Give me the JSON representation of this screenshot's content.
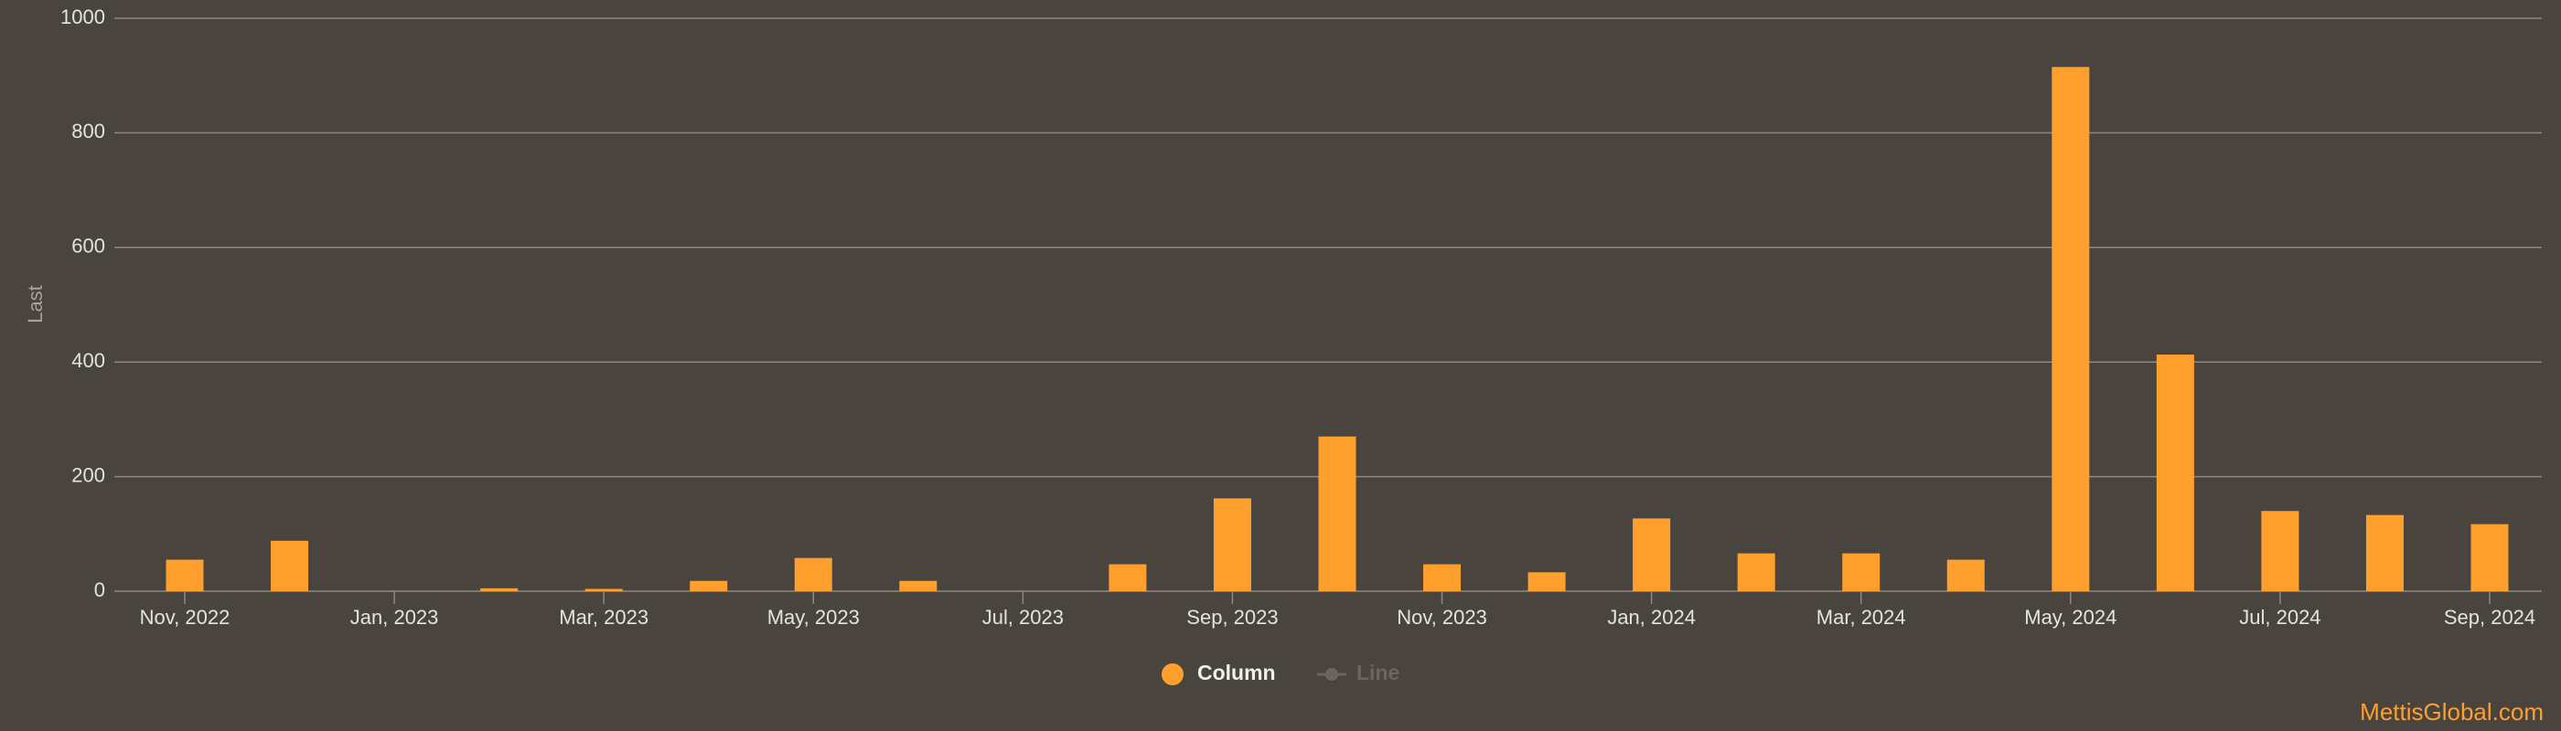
{
  "chart_data": {
    "type": "bar",
    "y_label": "Last",
    "categories": [
      "Nov, 2022",
      null,
      "Jan, 2023",
      null,
      "Mar, 2023",
      null,
      "May, 2023",
      null,
      "Jul, 2023",
      null,
      "Sep, 2023",
      null,
      "Nov, 2023",
      null,
      "Jan, 2024",
      null,
      "Mar, 2024",
      null,
      "May, 2024",
      null,
      "Jul, 2024",
      null,
      "Sep, 2024"
    ],
    "series": [
      {
        "name": "Column",
        "color": "#ff9f2d",
        "visible": true,
        "values": [
          55,
          88,
          0,
          5,
          4,
          18,
          58,
          18,
          0,
          47,
          162,
          270,
          47,
          33,
          127,
          66,
          66,
          55,
          915,
          413,
          140,
          133,
          117
        ]
      },
      {
        "name": "Line",
        "color": "#6b6560",
        "visible": false,
        "values": [
          null,
          null,
          null,
          null,
          null,
          null,
          null,
          null,
          null,
          null,
          null,
          null,
          null,
          null,
          null,
          null,
          null,
          null,
          null,
          null,
          null,
          null,
          null
        ]
      }
    ],
    "ylim": [
      0,
      1000
    ],
    "yticks": [
      0,
      200,
      400,
      600,
      800,
      1000
    ],
    "grid": true,
    "watermark": "MettisGlobal.com"
  }
}
